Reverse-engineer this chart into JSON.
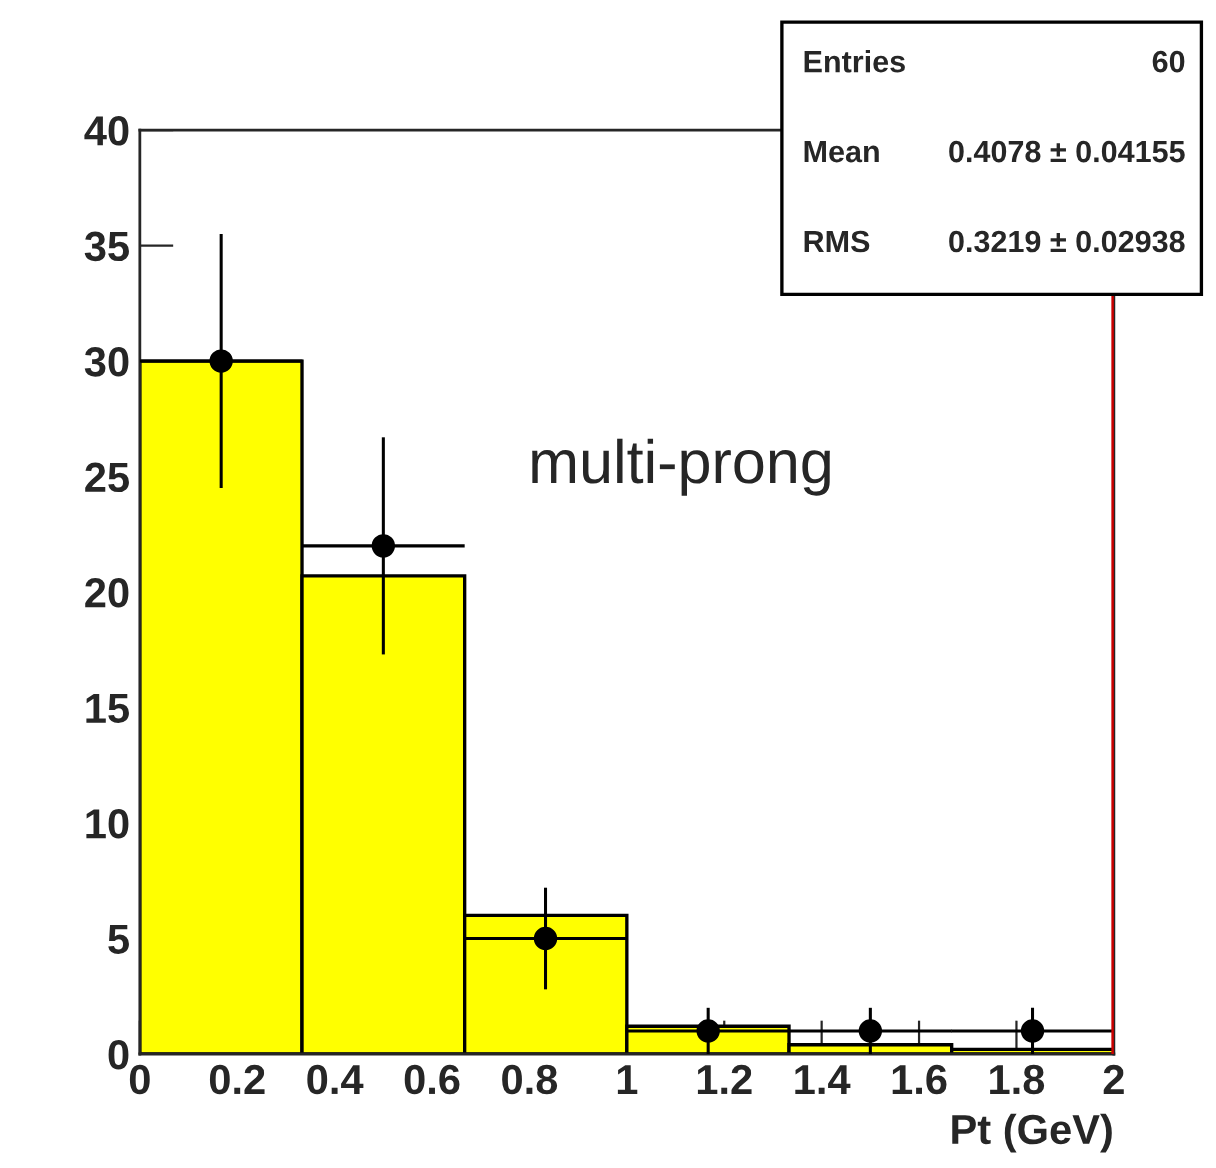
{
  "chart_data": {
    "type": "histogram",
    "xlabel": "Pt (GeV)",
    "bins": [
      0,
      0.333,
      0.667,
      1,
      1.333,
      1.667,
      2
    ],
    "series": [
      {
        "color": "#ffff00",
        "values": [
          30,
          20.7,
          6,
          1.2,
          0.4,
          0.2
        ]
      },
      {
        "type": "scatter",
        "color": "#000000",
        "marker": "circle",
        "x": [
          0.167,
          0.5,
          0.833,
          1.167,
          1.5,
          1.833
        ],
        "values": [
          30,
          22,
          5,
          1,
          1,
          1
        ],
        "errors": [
          5.5,
          4.7,
          2.2,
          1,
          1,
          1
        ],
        "xerrors": [
          0.167,
          0.167,
          0.167,
          0.167,
          0.167,
          0.167
        ]
      }
    ],
    "xlim": [
      0,
      2
    ],
    "ylim": [
      0,
      40
    ],
    "xticks": [
      0,
      0.2,
      0.4,
      0.6,
      0.8,
      1,
      1.2,
      1.4,
      1.6,
      1.8,
      2
    ],
    "yticks": [
      0,
      5,
      10,
      15,
      20,
      25,
      30,
      35,
      40
    ],
    "ref_lines": [
      {
        "axis": "x",
        "value": 2,
        "color": "#cc0000"
      }
    ],
    "grid": false,
    "legend": false,
    "annotations": [
      "Entries",
      "60",
      "Mean",
      "0.4078 ± 0.04155",
      "RMS",
      "0.3219 ± 0.02938",
      "multi-prong"
    ]
  }
}
